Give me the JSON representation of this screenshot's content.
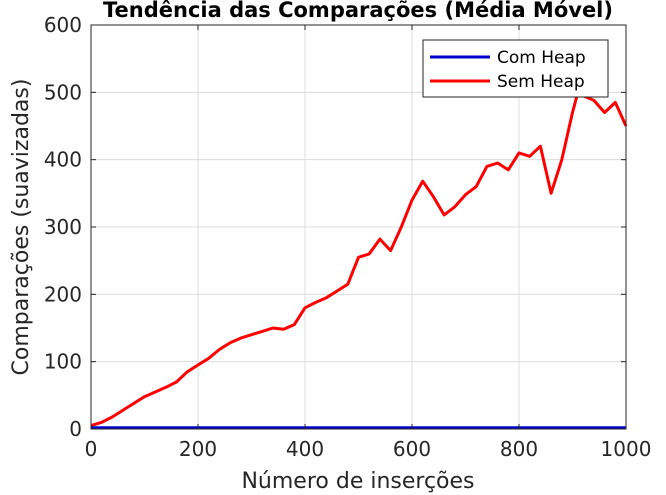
{
  "chart_data": {
    "type": "line",
    "title": "Tendência das Comparações (Média Móvel)",
    "xlabel": "Número de inserções",
    "ylabel": "Comparações (suavizadas)",
    "xlim": [
      0,
      1000
    ],
    "ylim": [
      0,
      600
    ],
    "xticks": [
      "0",
      "200",
      "400",
      "600",
      "800",
      "1000"
    ],
    "yticks": [
      "0",
      "100",
      "200",
      "300",
      "400",
      "500",
      "600"
    ],
    "grid": true,
    "legend_position": "top-right",
    "series": [
      {
        "name": "Com Heap",
        "color": "#0000cc",
        "x": [
          0,
          1000
        ],
        "y": [
          2,
          2
        ]
      },
      {
        "name": "Sem Heap",
        "color": "#ff0000",
        "x": [
          0,
          20,
          40,
          60,
          80,
          100,
          120,
          140,
          160,
          180,
          200,
          220,
          240,
          260,
          280,
          300,
          320,
          340,
          360,
          380,
          400,
          420,
          440,
          460,
          480,
          500,
          520,
          540,
          560,
          580,
          600,
          620,
          640,
          660,
          680,
          700,
          720,
          740,
          760,
          780,
          800,
          820,
          840,
          860,
          880,
          900,
          910,
          920,
          940,
          960,
          980,
          1000
        ],
        "y": [
          5,
          10,
          18,
          28,
          38,
          48,
          55,
          62,
          70,
          85,
          95,
          105,
          118,
          128,
          135,
          140,
          145,
          150,
          148,
          155,
          180,
          188,
          195,
          205,
          215,
          255,
          260,
          282,
          265,
          300,
          340,
          368,
          345,
          318,
          330,
          348,
          360,
          390,
          395,
          385,
          410,
          405,
          420,
          350,
          400,
          470,
          500,
          495,
          488,
          470,
          485,
          450
        ]
      }
    ]
  }
}
